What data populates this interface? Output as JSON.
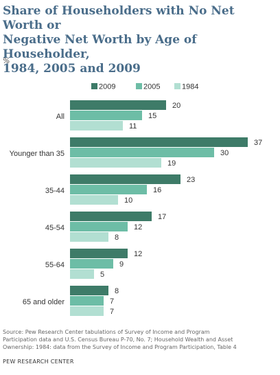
{
  "title_lines": [
    "Share of Householders with No Net Worth or",
    "Negative Net Worth by Age of Householder,",
    "1984, 2005 and 2009"
  ],
  "unit": "%",
  "source_lines": [
    "Source:  Pew Research Center tabulations of Survey of Income and Program",
    "Participation data and U.S. Census Bureau P-70, No. 7; Household Wealth and Asset",
    "Ownership: 1984: data from the Survey of Income and Program Participation, Table 4"
  ],
  "credit": "PEW RESEARCH CENTER",
  "colors": {
    "2009": "#3e7b68",
    "2005": "#6dbda6",
    "1984": "#b2dfd2"
  },
  "chart_data": {
    "type": "bar",
    "orientation": "horizontal",
    "categories": [
      "All",
      "Younger than 35",
      "35-44",
      "45-54",
      "55-64",
      "65 and older"
    ],
    "series": [
      {
        "name": "2009",
        "values": [
          20,
          37,
          23,
          17,
          12,
          8
        ]
      },
      {
        "name": "2005",
        "values": [
          15,
          30,
          16,
          12,
          9,
          7
        ]
      },
      {
        "name": "1984",
        "values": [
          11,
          19,
          10,
          8,
          5,
          7
        ]
      }
    ],
    "legend_position": "top",
    "grid": false,
    "xlim": [
      0,
      37
    ]
  }
}
